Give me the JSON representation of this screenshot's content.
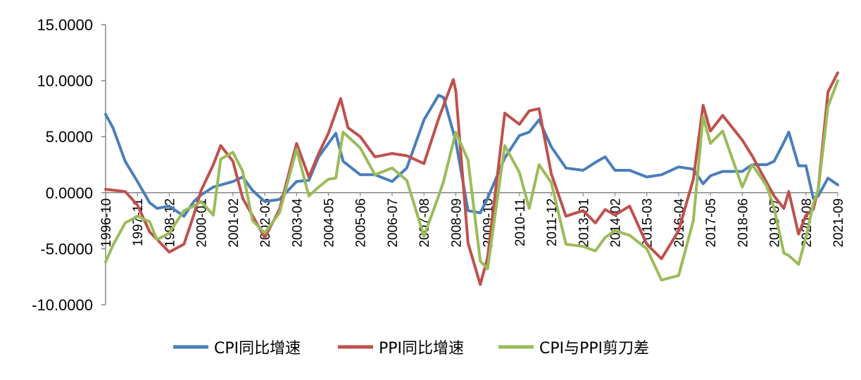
{
  "chart_data": {
    "type": "line",
    "title": "",
    "xlabel": "",
    "ylabel": "",
    "ylim": [
      -10,
      15
    ],
    "yticks": [
      "15.0000",
      "10.0000",
      "5.0000",
      "0.0000",
      "-5.0000",
      "-10.0000"
    ],
    "ytick_values": [
      15,
      10,
      5,
      0,
      -5,
      -10
    ],
    "x_range": [
      "1996-10",
      "2021-09"
    ],
    "xticks": [
      "1996-10",
      "1997-11",
      "1998-12",
      "2000-01",
      "2001-02",
      "2002-03",
      "2003-04",
      "2004-05",
      "2005-06",
      "2006-07",
      "2007-08",
      "2008-09",
      "2009-10",
      "2010-11",
      "2011-12",
      "2013-01",
      "2014-02",
      "2015-03",
      "2016-04",
      "2017-05",
      "2018-06",
      "2019-07",
      "2020-08",
      "2021-09"
    ],
    "grid": false,
    "legend_position": "bottom",
    "series": [
      {
        "name": "CPI同比增速",
        "color": "#4a7ebb",
        "points": [
          [
            "1996-10",
            7.0
          ],
          [
            "1997-01",
            5.8
          ],
          [
            "1997-06",
            2.8
          ],
          [
            "1997-11",
            1.0
          ],
          [
            "1998-04",
            -0.9
          ],
          [
            "1998-07",
            -1.4
          ],
          [
            "1998-12",
            -1.2
          ],
          [
            "1999-06",
            -2.1
          ],
          [
            "1999-10",
            -0.8
          ],
          [
            "2000-01",
            -0.2
          ],
          [
            "2000-06",
            0.5
          ],
          [
            "2001-02",
            1.0
          ],
          [
            "2001-06",
            1.4
          ],
          [
            "2001-10",
            0.2
          ],
          [
            "2002-03",
            -0.8
          ],
          [
            "2002-09",
            -0.6
          ],
          [
            "2003-04",
            1.0
          ],
          [
            "2003-09",
            1.1
          ],
          [
            "2004-01",
            3.2
          ],
          [
            "2004-05",
            4.4
          ],
          [
            "2004-08",
            5.3
          ],
          [
            "2004-11",
            2.8
          ],
          [
            "2005-06",
            1.6
          ],
          [
            "2005-12",
            1.6
          ],
          [
            "2006-07",
            1.0
          ],
          [
            "2007-01",
            2.2
          ],
          [
            "2007-08",
            6.5
          ],
          [
            "2008-02",
            8.7
          ],
          [
            "2008-04",
            8.5
          ],
          [
            "2008-09",
            4.6
          ],
          [
            "2009-02",
            -1.6
          ],
          [
            "2009-07",
            -1.8
          ],
          [
            "2009-10",
            -0.5
          ],
          [
            "2010-05",
            3.1
          ],
          [
            "2010-11",
            5.1
          ],
          [
            "2011-03",
            5.4
          ],
          [
            "2011-07",
            6.5
          ],
          [
            "2011-12",
            4.1
          ],
          [
            "2012-06",
            2.2
          ],
          [
            "2013-01",
            2.0
          ],
          [
            "2013-06",
            2.7
          ],
          [
            "2013-10",
            3.2
          ],
          [
            "2014-02",
            2.0
          ],
          [
            "2014-08",
            2.0
          ],
          [
            "2015-03",
            1.4
          ],
          [
            "2015-09",
            1.6
          ],
          [
            "2016-04",
            2.3
          ],
          [
            "2016-10",
            2.1
          ],
          [
            "2017-02",
            0.8
          ],
          [
            "2017-05",
            1.5
          ],
          [
            "2017-10",
            1.9
          ],
          [
            "2018-06",
            1.9
          ],
          [
            "2018-10",
            2.5
          ],
          [
            "2019-04",
            2.5
          ],
          [
            "2019-07",
            2.8
          ],
          [
            "2019-11",
            4.5
          ],
          [
            "2020-01",
            5.4
          ],
          [
            "2020-05",
            2.4
          ],
          [
            "2020-08",
            2.4
          ],
          [
            "2020-11",
            -0.5
          ],
          [
            "2021-01",
            -0.3
          ],
          [
            "2021-05",
            1.3
          ],
          [
            "2021-09",
            0.7
          ]
        ]
      },
      {
        "name": "PPI同比增速",
        "color": "#c0504d",
        "points": [
          [
            "1996-10",
            0.3
          ],
          [
            "1997-06",
            0.1
          ],
          [
            "1997-11",
            -1.1
          ],
          [
            "1998-04",
            -3.5
          ],
          [
            "1998-12",
            -5.3
          ],
          [
            "1999-06",
            -4.6
          ],
          [
            "1999-10",
            -2.0
          ],
          [
            "2000-01",
            0.2
          ],
          [
            "2000-06",
            2.5
          ],
          [
            "2000-09",
            4.2
          ],
          [
            "2001-02",
            2.8
          ],
          [
            "2001-06",
            -0.5
          ],
          [
            "2002-03",
            -4.0
          ],
          [
            "2002-09",
            -1.5
          ],
          [
            "2003-04",
            4.4
          ],
          [
            "2003-09",
            1.4
          ],
          [
            "2004-01",
            3.5
          ],
          [
            "2004-05",
            5.3
          ],
          [
            "2004-10",
            8.4
          ],
          [
            "2005-01",
            5.8
          ],
          [
            "2005-06",
            5.0
          ],
          [
            "2005-12",
            3.2
          ],
          [
            "2006-07",
            3.5
          ],
          [
            "2007-01",
            3.3
          ],
          [
            "2007-08",
            2.6
          ],
          [
            "2008-02",
            6.6
          ],
          [
            "2008-08",
            10.1
          ],
          [
            "2008-09",
            9.1
          ],
          [
            "2009-02",
            -4.5
          ],
          [
            "2009-07",
            -8.2
          ],
          [
            "2009-10",
            -5.8
          ],
          [
            "2010-05",
            7.1
          ],
          [
            "2010-11",
            6.1
          ],
          [
            "2011-03",
            7.3
          ],
          [
            "2011-07",
            7.5
          ],
          [
            "2011-12",
            1.7
          ],
          [
            "2012-06",
            -2.1
          ],
          [
            "2013-01",
            -1.6
          ],
          [
            "2013-06",
            -2.7
          ],
          [
            "2013-10",
            -1.5
          ],
          [
            "2014-02",
            -2.0
          ],
          [
            "2014-08",
            -1.2
          ],
          [
            "2015-03",
            -4.6
          ],
          [
            "2015-09",
            -5.9
          ],
          [
            "2016-04",
            -3.4
          ],
          [
            "2016-10",
            1.2
          ],
          [
            "2017-02",
            7.8
          ],
          [
            "2017-05",
            5.5
          ],
          [
            "2017-10",
            6.9
          ],
          [
            "2018-06",
            4.7
          ],
          [
            "2018-10",
            3.3
          ],
          [
            "2019-04",
            0.9
          ],
          [
            "2019-07",
            -0.3
          ],
          [
            "2019-11",
            -1.4
          ],
          [
            "2020-01",
            0.1
          ],
          [
            "2020-05",
            -3.7
          ],
          [
            "2020-08",
            -2.0
          ],
          [
            "2020-11",
            -1.5
          ],
          [
            "2021-01",
            0.3
          ],
          [
            "2021-05",
            9.0
          ],
          [
            "2021-09",
            10.7
          ]
        ]
      },
      {
        "name": "CPI与PPI剪刀差",
        "color": "#9bbb59",
        "points": [
          [
            "1996-10",
            -6.2
          ],
          [
            "1997-01",
            -4.7
          ],
          [
            "1997-06",
            -2.7
          ],
          [
            "1997-11",
            -2.1
          ],
          [
            "1998-04",
            -2.6
          ],
          [
            "1998-07",
            -4.2
          ],
          [
            "1998-12",
            -3.6
          ],
          [
            "1999-06",
            -1.6
          ],
          [
            "1999-10",
            -1.2
          ],
          [
            "2000-01",
            -0.8
          ],
          [
            "2000-06",
            -2.0
          ],
          [
            "2000-09",
            3.0
          ],
          [
            "2001-02",
            3.6
          ],
          [
            "2001-06",
            1.9
          ],
          [
            "2001-10",
            -2.5
          ],
          [
            "2002-03",
            -3.6
          ],
          [
            "2002-09",
            -1.8
          ],
          [
            "2003-04",
            3.9
          ],
          [
            "2003-09",
            -0.3
          ],
          [
            "2004-01",
            0.5
          ],
          [
            "2004-05",
            1.2
          ],
          [
            "2004-08",
            1.3
          ],
          [
            "2004-11",
            5.4
          ],
          [
            "2005-06",
            4.0
          ],
          [
            "2005-12",
            1.6
          ],
          [
            "2006-07",
            2.2
          ],
          [
            "2007-01",
            1.1
          ],
          [
            "2007-08",
            -3.9
          ],
          [
            "2008-02",
            -0.3
          ],
          [
            "2008-04",
            1.0
          ],
          [
            "2008-09",
            5.4
          ],
          [
            "2009-02",
            2.9
          ],
          [
            "2009-07",
            -6.1
          ],
          [
            "2009-10",
            -6.8
          ],
          [
            "2010-05",
            4.2
          ],
          [
            "2010-11",
            1.8
          ],
          [
            "2011-03",
            -1.4
          ],
          [
            "2011-07",
            2.5
          ],
          [
            "2011-12",
            0.9
          ],
          [
            "2012-06",
            -4.6
          ],
          [
            "2013-01",
            -4.8
          ],
          [
            "2013-06",
            -5.2
          ],
          [
            "2013-10",
            -4.0
          ],
          [
            "2014-02",
            -3.4
          ],
          [
            "2014-08",
            -3.8
          ],
          [
            "2015-03",
            -5.0
          ],
          [
            "2015-09",
            -7.8
          ],
          [
            "2016-04",
            -7.4
          ],
          [
            "2016-10",
            -2.5
          ],
          [
            "2017-02",
            6.8
          ],
          [
            "2017-05",
            4.4
          ],
          [
            "2017-10",
            5.5
          ],
          [
            "2018-06",
            0.5
          ],
          [
            "2018-10",
            2.5
          ],
          [
            "2019-04",
            0.6
          ],
          [
            "2019-07",
            -1.4
          ],
          [
            "2019-11",
            -5.4
          ],
          [
            "2020-01",
            -5.6
          ],
          [
            "2020-05",
            -6.4
          ],
          [
            "2020-08",
            -4.0
          ],
          [
            "2020-11",
            -1.0
          ],
          [
            "2021-01",
            0.2
          ],
          [
            "2021-05",
            7.7
          ],
          [
            "2021-09",
            10.0
          ]
        ]
      }
    ]
  }
}
